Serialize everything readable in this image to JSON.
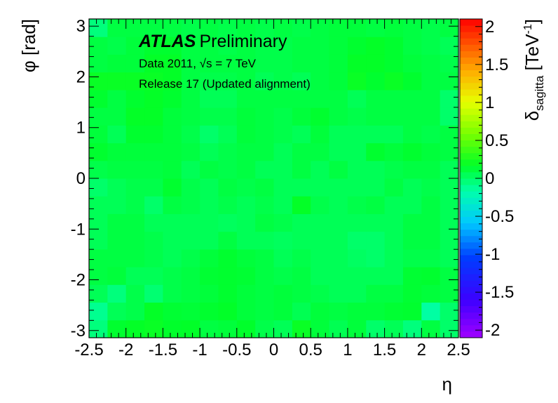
{
  "chart_data": {
    "type": "heatmap",
    "title": "",
    "xlabel": "η",
    "ylabel": "φ [rad]",
    "zlabel_main": "δ",
    "zlabel_sub": "sagitta",
    "zlabel_unit_open": " [TeV",
    "zlabel_unit_exp": "-1",
    "zlabel_unit_close": "]",
    "xlim": [
      -2.5,
      2.5
    ],
    "ylim": [
      -3.1416,
      3.1416
    ],
    "zlim": [
      -2.1,
      2.1
    ],
    "x_ticks": [
      -2.5,
      -2,
      -1.5,
      -1,
      -0.5,
      0,
      0.5,
      1,
      1.5,
      2,
      2.5
    ],
    "x_tick_labels": [
      "-2.5",
      "-2",
      "-1.5",
      "-1",
      "-0.5",
      "0",
      "0.5",
      "1",
      "1.5",
      "2",
      "2.5"
    ],
    "y_ticks": [
      -3,
      -2,
      -1,
      0,
      1,
      2,
      3
    ],
    "y_tick_labels": [
      "-3",
      "-2",
      "-1",
      "0",
      "1",
      "2",
      "3"
    ],
    "z_ticks": [
      -2,
      -1.5,
      -1,
      -0.5,
      0,
      0.5,
      1,
      1.5,
      2
    ],
    "z_tick_labels": [
      "-2",
      "-1.5",
      "-1",
      "-0.5",
      "0",
      "0.5",
      "1",
      "1.5",
      "2"
    ],
    "x_bins": 20,
    "y_bins": 18,
    "annotations": {
      "atlas": "ATLAS",
      "preliminary": "Preliminary",
      "data_prefix": "Data 2011, ",
      "sqrt_symbol": "√",
      "data_suffix": "s = 7 TeV",
      "release": "Release 17 (Updated alignment)"
    },
    "values": [
      [
        -0.05,
        0.15,
        0.18,
        0.2,
        0.16,
        0.17,
        0.1,
        0.12,
        0.16,
        0.08,
        0.05,
        0.2,
        0.12,
        0.06,
        0.12,
        0.0,
        0.05,
        -0.05,
        0.1,
        0.0
      ],
      [
        -0.1,
        0.05,
        0.08,
        0.18,
        0.14,
        0.13,
        0.15,
        0.17,
        0.12,
        0.1,
        0.12,
        0.06,
        0.12,
        0.1,
        0.12,
        0.12,
        0.14,
        0.15,
        -0.15,
        0.0
      ],
      [
        0.05,
        -0.05,
        0.08,
        -0.02,
        0.08,
        0.1,
        0.12,
        0.15,
        0.12,
        0.1,
        0.12,
        0.1,
        0.08,
        0.05,
        0.05,
        0.1,
        0.1,
        0.14,
        0.12,
        0.1
      ],
      [
        0.1,
        0.12,
        0.05,
        0.05,
        0.08,
        0.1,
        0.14,
        0.15,
        0.14,
        0.1,
        0.08,
        0.1,
        0.05,
        0.05,
        0.05,
        0.05,
        0.05,
        0.14,
        0.15,
        0.1
      ],
      [
        0.1,
        0.1,
        0.1,
        0.08,
        0.05,
        0.08,
        0.12,
        0.15,
        0.12,
        0.1,
        0.05,
        0.08,
        0.05,
        0.05,
        0.02,
        0.0,
        0.05,
        0.08,
        0.08,
        0.05
      ],
      [
        0.05,
        0.1,
        0.1,
        0.08,
        0.05,
        0.05,
        0.05,
        0.1,
        0.05,
        0.05,
        0.03,
        0.05,
        0.05,
        0.05,
        0.0,
        0.0,
        0.05,
        0.1,
        0.1,
        0.05
      ],
      [
        0.05,
        0.1,
        0.1,
        0.05,
        0.05,
        0.05,
        0.05,
        0.03,
        0.05,
        0.1,
        0.08,
        0.05,
        0.05,
        0.05,
        0.05,
        0.05,
        0.05,
        0.1,
        0.1,
        0.05
      ],
      [
        0.05,
        0.05,
        0.08,
        0.0,
        0.1,
        0.08,
        0.05,
        0.08,
        0.05,
        0.08,
        0.05,
        0.18,
        0.08,
        0.05,
        0.08,
        0.1,
        0.05,
        0.05,
        0.1,
        0.05
      ],
      [
        0.0,
        0.05,
        0.08,
        0.08,
        0.15,
        0.08,
        0.05,
        0.1,
        0.08,
        0.1,
        0.05,
        0.05,
        0.05,
        0.05,
        0.05,
        0.05,
        0.1,
        0.05,
        0.08,
        0.05
      ],
      [
        0.08,
        0.1,
        0.1,
        0.1,
        0.12,
        0.05,
        0.1,
        0.08,
        0.1,
        0.05,
        0.05,
        0.1,
        0.05,
        0.1,
        0.05,
        0.05,
        0.08,
        0.1,
        0.1,
        0.05
      ],
      [
        0.15,
        0.12,
        0.12,
        0.12,
        0.12,
        0.1,
        0.05,
        0.08,
        0.1,
        0.1,
        0.05,
        0.1,
        0.1,
        0.05,
        0.05,
        0.15,
        0.12,
        0.15,
        0.12,
        0.1
      ],
      [
        0.12,
        0.05,
        0.15,
        0.15,
        0.12,
        0.08,
        0.0,
        0.05,
        0.12,
        0.1,
        0.08,
        0.05,
        0.12,
        0.05,
        0.05,
        0.05,
        0.05,
        0.1,
        0.08,
        0.1
      ],
      [
        0.1,
        0.1,
        0.18,
        0.18,
        0.12,
        0.1,
        0.08,
        0.08,
        0.12,
        0.1,
        0.08,
        0.12,
        0.15,
        0.1,
        0.08,
        0.1,
        0.1,
        0.1,
        0.1,
        0.0
      ],
      [
        0.15,
        0.1,
        0.15,
        0.18,
        0.15,
        0.1,
        0.05,
        0.05,
        0.1,
        0.1,
        0.1,
        0.1,
        0.1,
        0.1,
        0.05,
        0.1,
        0.1,
        0.1,
        0.1,
        0.0
      ],
      [
        0.2,
        0.2,
        0.2,
        0.2,
        0.18,
        0.1,
        0.08,
        0.08,
        0.1,
        0.05,
        0.08,
        0.05,
        0.1,
        0.12,
        0.2,
        0.15,
        0.2,
        0.15,
        0.1,
        0.1
      ],
      [
        0.1,
        0.12,
        0.12,
        0.18,
        0.18,
        0.1,
        0.1,
        0.1,
        0.1,
        0.08,
        0.08,
        0.1,
        0.1,
        0.12,
        0.18,
        0.18,
        0.15,
        0.12,
        0.1,
        0.08
      ],
      [
        0.1,
        0.08,
        0.12,
        0.15,
        0.15,
        0.1,
        0.1,
        0.08,
        0.1,
        0.08,
        0.08,
        0.1,
        0.1,
        0.12,
        0.15,
        0.18,
        0.15,
        0.1,
        0.08,
        0.05
      ],
      [
        -0.05,
        0.1,
        0.1,
        0.1,
        0.1,
        0.08,
        0.1,
        0.08,
        0.1,
        0.08,
        0.1,
        0.08,
        0.1,
        0.12,
        0.12,
        0.1,
        0.12,
        0.1,
        0.08,
        0.1
      ]
    ]
  }
}
